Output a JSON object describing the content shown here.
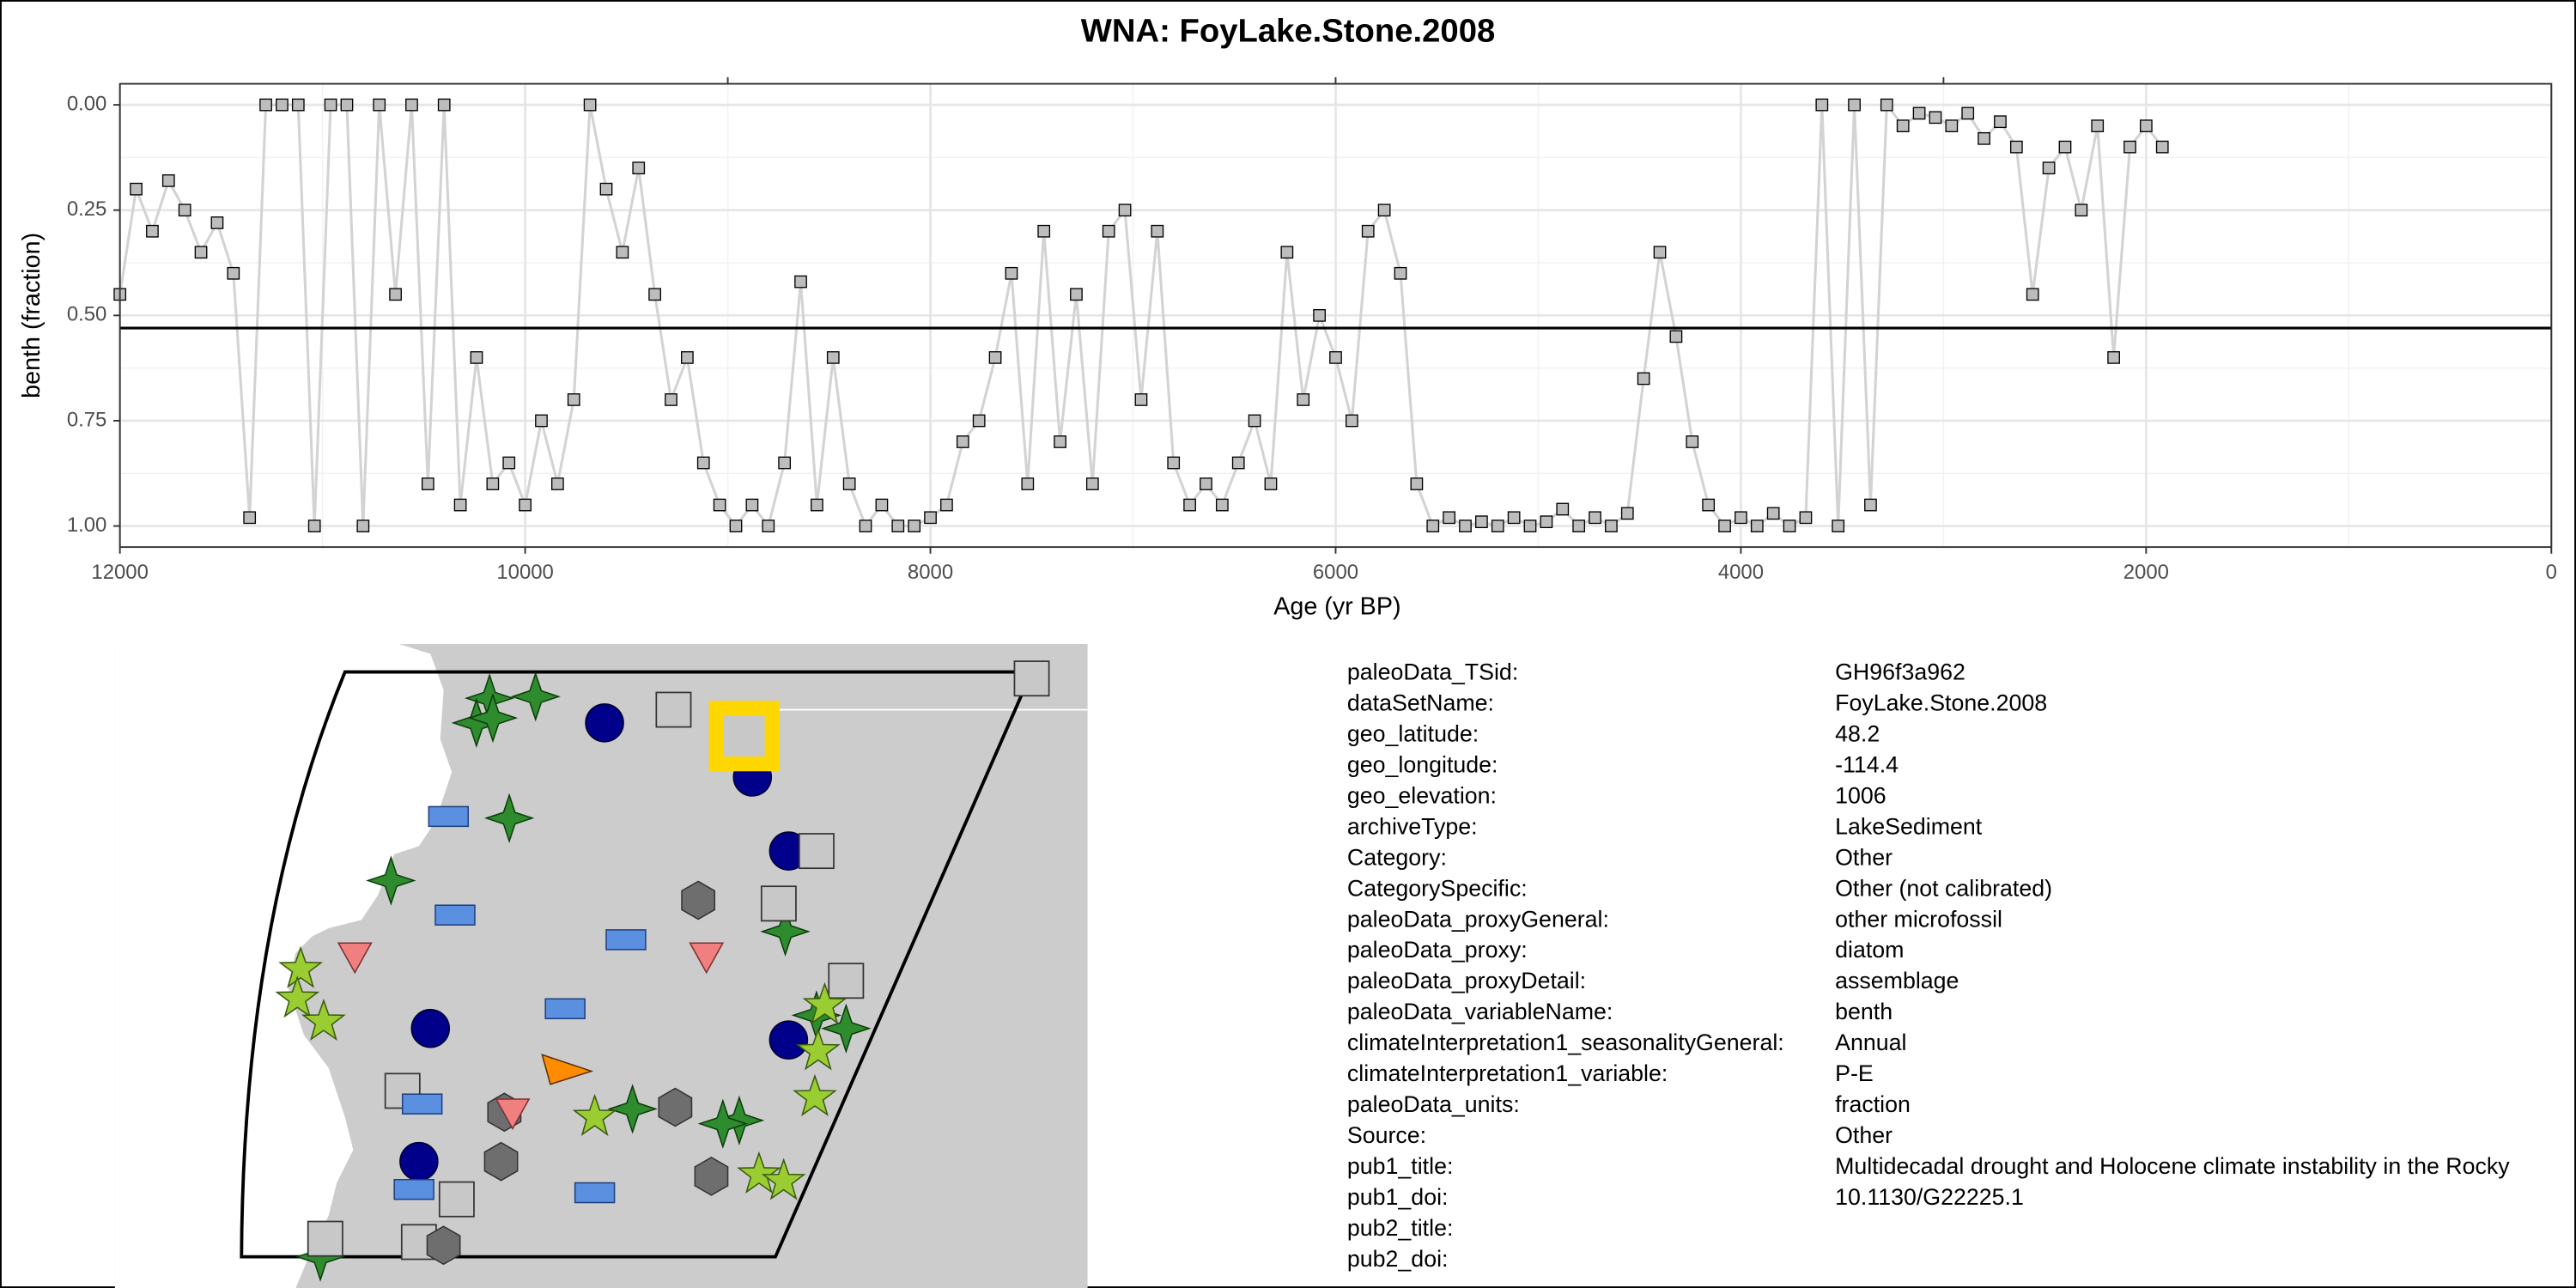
{
  "chart_data": {
    "type": "line",
    "title": "WNA: FoyLake.Stone.2008",
    "xlabel": "Age (yr BP)",
    "ylabel": "benth (fraction)",
    "xlim": [
      12000,
      0
    ],
    "xticks": [
      12000,
      10000,
      8000,
      6000,
      4000,
      2000,
      0
    ],
    "ylim": [
      -0.05,
      1.05
    ],
    "y_reversed": true,
    "yticks": [
      {
        "value": 0,
        "label": "0.00"
      },
      {
        "value": 0.25,
        "label": "0.25"
      },
      {
        "value": 0.5,
        "label": "0.50"
      },
      {
        "value": 0.75,
        "label": "0.75"
      },
      {
        "value": 1,
        "label": "1.00"
      }
    ],
    "grid": true,
    "reference_line": 0.53,
    "line_color": "#d3d3d3",
    "marker_color": "#bdbdbd",
    "x": [
      12000,
      11920,
      11840,
      11760,
      11680,
      11600,
      11520,
      11440,
      11360,
      11280,
      11200,
      11120,
      11040,
      10960,
      10880,
      10800,
      10720,
      10640,
      10560,
      10480,
      10400,
      10320,
      10240,
      10160,
      10080,
      10000,
      9920,
      9840,
      9760,
      9680,
      9600,
      9520,
      9440,
      9360,
      9280,
      9200,
      9120,
      9040,
      8960,
      8880,
      8800,
      8720,
      8640,
      8560,
      8480,
      8400,
      8320,
      8240,
      8160,
      8080,
      8000,
      7920,
      7840,
      7760,
      7680,
      7600,
      7520,
      7440,
      7360,
      7280,
      7200,
      7120,
      7040,
      6960,
      6880,
      6800,
      6720,
      6640,
      6560,
      6480,
      6400,
      6320,
      6240,
      6160,
      6080,
      6000,
      5920,
      5840,
      5760,
      5680,
      5600,
      5520,
      5440,
      5360,
      5280,
      5200,
      5120,
      5040,
      4960,
      4880,
      4800,
      4720,
      4640,
      4560,
      4480,
      4400,
      4320,
      4240,
      4160,
      4080,
      4000,
      3920,
      3840,
      3760,
      3680,
      3600,
      3520,
      3440,
      3360,
      3280,
      3200,
      3120,
      3040,
      2960,
      2880,
      2800,
      2720,
      2640,
      2560,
      2480,
      2400,
      2320,
      2240,
      2160,
      2080,
      2000,
      1920
    ],
    "values": [
      0.45,
      0.2,
      0.3,
      0.18,
      0.25,
      0.35,
      0.28,
      0.4,
      0.98,
      0,
      0,
      0,
      1,
      0,
      0,
      1,
      0,
      0.45,
      0,
      0.9,
      0,
      0.95,
      0.6,
      0.9,
      0.85,
      0.95,
      0.75,
      0.9,
      0.7,
      0,
      0.2,
      0.35,
      0.15,
      0.45,
      0.7,
      0.6,
      0.85,
      0.95,
      1,
      0.95,
      1,
      0.85,
      0.42,
      0.95,
      0.6,
      0.9,
      1,
      0.95,
      1,
      1,
      0.98,
      0.95,
      0.8,
      0.75,
      0.6,
      0.4,
      0.9,
      0.3,
      0.8,
      0.45,
      0.9,
      0.3,
      0.25,
      0.7,
      0.3,
      0.85,
      0.95,
      0.9,
      0.95,
      0.85,
      0.75,
      0.9,
      0.35,
      0.7,
      0.5,
      0.6,
      0.75,
      0.3,
      0.25,
      0.4,
      0.9,
      1,
      0.98,
      1,
      0.99,
      1,
      0.98,
      1,
      0.99,
      0.96,
      1,
      0.98,
      1,
      0.97,
      0.65,
      0.35,
      0.55,
      0.8,
      0.95,
      1,
      0.98,
      1,
      0.97,
      1,
      0.98,
      0,
      1,
      0,
      0.95,
      0,
      0.05,
      0.02,
      0.03,
      0.05,
      0.02,
      0.08,
      0.04,
      0.1,
      0.45,
      0.15,
      0.1,
      0.25,
      0.05,
      0.6,
      0.1,
      0.05,
      0.1
    ]
  },
  "metadata": {
    "rows": [
      [
        "paleoData_TSid:",
        "GH96f3a962"
      ],
      [
        "dataSetName:",
        "FoyLake.Stone.2008"
      ],
      [
        "geo_latitude:",
        "48.2"
      ],
      [
        "geo_longitude:",
        "-114.4"
      ],
      [
        "geo_elevation:",
        "1006"
      ],
      [
        "archiveType:",
        "LakeSediment"
      ],
      [
        "Category:",
        "Other"
      ],
      [
        "CategorySpecific:",
        "Other (not calibrated)"
      ],
      [
        "paleoData_proxyGeneral:",
        "other microfossil"
      ],
      [
        "paleoData_proxy:",
        "diatom"
      ],
      [
        "paleoData_proxyDetail:",
        "assemblage"
      ],
      [
        "paleoData_variableName:",
        "benth"
      ],
      [
        "climateInterpretation1_seasonalityGeneral:",
        "Annual"
      ],
      [
        "climateInterpretation1_variable:",
        "P-E"
      ],
      [
        "paleoData_units:",
        "fraction"
      ],
      [
        "Source:",
        "Other"
      ],
      [
        "pub1_title:",
        "Multidecadal drought and Holocene climate instability in the Rocky"
      ],
      [
        "pub1_doi:",
        "10.1130/G22225.1"
      ],
      [
        "pub2_title:"
      ],
      [
        "pub2_doi:"
      ]
    ]
  }
}
